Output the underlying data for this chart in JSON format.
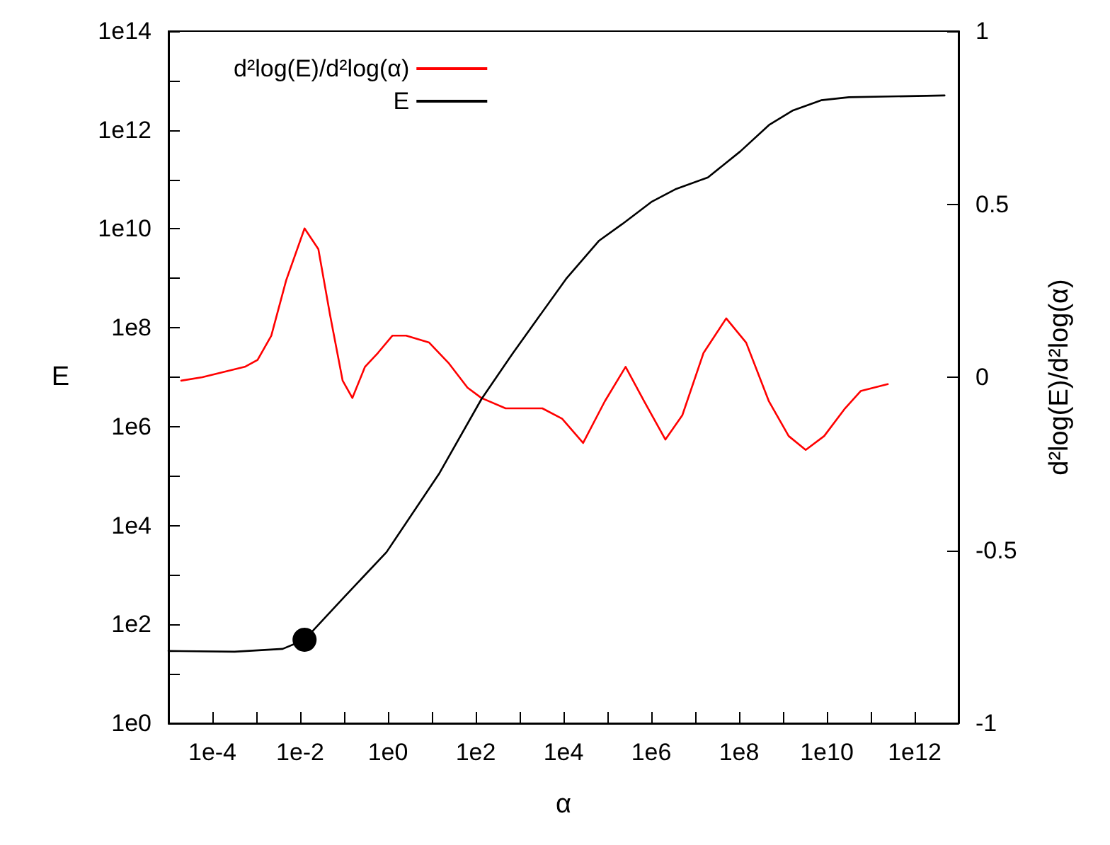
{
  "chart_data": {
    "type": "line",
    "xlabel": "α",
    "ylabel": "E",
    "y2label": "d²log(E)/d²log(α)",
    "log": "xy",
    "legend": "top left",
    "grid": false,
    "marker": "none",
    "line_style": "solid",
    "xlim": [
      1e-05,
      10000000000000.0
    ],
    "xticks": [
      {
        "value": 1e-05,
        "label": null
      },
      {
        "value": 0.0001,
        "label": "1e-4"
      },
      {
        "value": 0.001,
        "label": null
      },
      {
        "value": 0.01,
        "label": "1e-2"
      },
      {
        "value": 0.1,
        "label": null
      },
      {
        "value": 1,
        "label": "1e0"
      },
      {
        "value": 10,
        "label": null
      },
      {
        "value": 100,
        "label": "1e2"
      },
      {
        "value": 1000,
        "label": null
      },
      {
        "value": 10000.0,
        "label": "1e4"
      },
      {
        "value": 100000.0,
        "label": null
      },
      {
        "value": 1000000.0,
        "label": "1e6"
      },
      {
        "value": 10000000.0,
        "label": null
      },
      {
        "value": 100000000.0,
        "label": "1e8"
      },
      {
        "value": 1000000000.0,
        "label": null
      },
      {
        "value": 10000000000.0,
        "label": "1e10"
      },
      {
        "value": 100000000000.0,
        "label": null
      },
      {
        "value": 1000000000000.0,
        "label": "1e12"
      }
    ],
    "ylim": [
      1,
      100000000000000.0
    ],
    "yticks": [
      {
        "value": 1,
        "label": "1e0"
      },
      {
        "value": 10,
        "label": null
      },
      {
        "value": 100,
        "label": "1e2"
      },
      {
        "value": 1000,
        "label": null
      },
      {
        "value": 10000.0,
        "label": "1e4"
      },
      {
        "value": 100000.0,
        "label": null
      },
      {
        "value": 1000000.0,
        "label": "1e6"
      },
      {
        "value": 10000000.0,
        "label": null
      },
      {
        "value": 100000000.0,
        "label": "1e8"
      },
      {
        "value": 1000000000.0,
        "label": null
      },
      {
        "value": 10000000000.0,
        "label": "1e10"
      },
      {
        "value": 100000000000.0,
        "label": null
      },
      {
        "value": 1000000000000.0,
        "label": "1e12"
      },
      {
        "value": 10000000000000.0,
        "label": null
      },
      {
        "value": 100000000000000.0,
        "label": "1e14"
      }
    ],
    "y2lim": [
      -1,
      1
    ],
    "y2ticks": [
      -1,
      -0.5,
      0,
      0.5,
      1
    ],
    "series": [
      {
        "name": "d²log(E)/d²log(α)",
        "color": "#ff0000",
        "axis": "y2",
        "x": [
          1.95e-05,
          5.9e-05,
          0.00055,
          0.00107,
          0.0022,
          0.0048,
          0.0126,
          0.026,
          0.048,
          0.093,
          0.155,
          0.3,
          0.59,
          1.26,
          2.6,
          8.7,
          24.5,
          65,
          135,
          480,
          3300,
          9300,
          28000.0,
          87000.0,
          260000.0,
          690000.0,
          2100000.0,
          5100000.0,
          15500000.0,
          51000000.0,
          145000000.0,
          480000000.0,
          1350000000.0,
          3300000000.0,
          8700000000.0,
          26000000000.0,
          59000000000.0,
          245000000000.0
        ],
        "values": [
          -0.01,
          0,
          0.03,
          0.05,
          0.12,
          0.28,
          0.43,
          0.37,
          0.18,
          -0.01,
          -0.06,
          0.03,
          0.07,
          0.12,
          0.12,
          0.1,
          0.04,
          -0.03,
          -0.06,
          -0.09,
          -0.09,
          -0.12,
          -0.19,
          -0.07,
          0.03,
          -0.07,
          -0.18,
          -0.11,
          0.07,
          0.17,
          0.1,
          -0.07,
          -0.17,
          -0.21,
          -0.17,
          -0.09,
          -0.04,
          -0.02
        ]
      },
      {
        "name": "E",
        "color": "#000000",
        "x": [
          1e-05,
          0.00032,
          0.004,
          0.0126,
          0.1,
          0.93,
          14.5,
          135,
          690,
          11500.0,
          65000.0,
          220000.0,
          1000000.0,
          3500000.0,
          19500000.0,
          107000000.0,
          480000000.0,
          1700000000.0,
          7400000000.0,
          32000000000.0,
          4800000000000.0
        ],
        "values": [
          29,
          28,
          32,
          49,
          355,
          2900,
          110000.0,
          3600000.0,
          30000000.0,
          980000000.0,
          5800000000.0,
          12600000000.0,
          35000000000.0,
          63000000000.0,
          110000000000.0,
          370000000000.0,
          1260000000000.0,
          2500000000000.0,
          4000000000000.0,
          4600000000000.0,
          5000000000000.0
        ]
      },
      {
        "type": "scatter",
        "marker": "circle",
        "color": "#000000",
        "x": [
          0.0126
        ],
        "values": [
          49
        ]
      }
    ]
  }
}
